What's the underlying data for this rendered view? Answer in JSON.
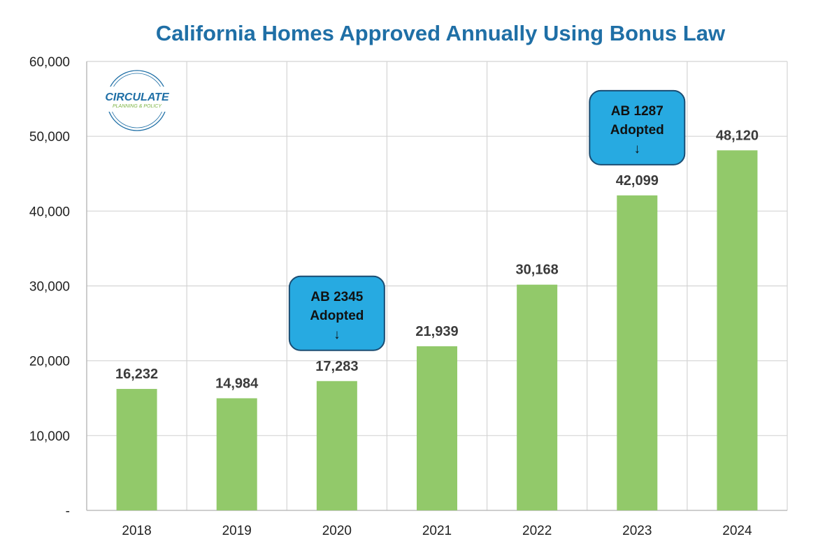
{
  "colors": {
    "bar": "#92c96a",
    "title": "#1f6fa6",
    "grid": "#d4d4d4",
    "axis": "#bdbdbd",
    "callout_fill": "#27aae1",
    "callout_stroke": "#1a4d73",
    "logo_blue": "#1f6fa6",
    "logo_green": "#7cb342"
  },
  "logo": {
    "name": "CIRCULATE",
    "tagline": "PLANNING & POLICY"
  },
  "chart_data": {
    "type": "bar",
    "title": "California Homes Approved Annually Using Bonus Law",
    "xlabel": "",
    "ylabel": "",
    "categories": [
      "2018",
      "2019",
      "2020",
      "2021",
      "2022",
      "2023",
      "2024"
    ],
    "values": [
      16232,
      14984,
      17283,
      21939,
      30168,
      42099,
      48120
    ],
    "value_labels": [
      "16,232",
      "14,984",
      "17,283",
      "21,939",
      "30,168",
      "42,099",
      "48,120"
    ],
    "ylim": [
      0,
      60000
    ],
    "yticks": [
      0,
      10000,
      20000,
      30000,
      40000,
      50000,
      60000
    ],
    "ytick_labels": [
      "-",
      "10,000",
      "20,000",
      "30,000",
      "40,000",
      "50,000",
      "60,000"
    ],
    "grid": true,
    "legend": "none",
    "annotations": [
      {
        "category": "2020",
        "lines": [
          "AB 2345",
          "Adopted",
          "↓"
        ]
      },
      {
        "category": "2023",
        "lines": [
          "AB 1287",
          "Adopted",
          "↓"
        ]
      }
    ]
  }
}
